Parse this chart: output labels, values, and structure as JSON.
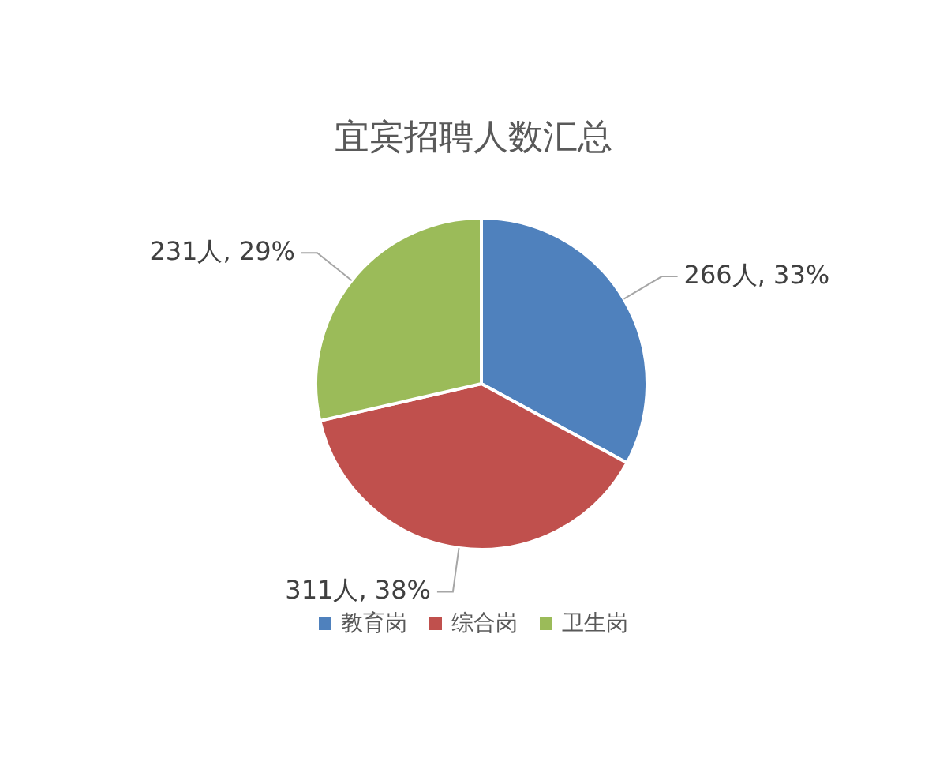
{
  "chart_data": {
    "type": "pie",
    "title": "宜宾招聘人数汇总",
    "categories": [
      "教育岗",
      "综合岗",
      "卫生岗"
    ],
    "values": [
      266,
      311,
      231
    ],
    "colors": [
      "#4f81bd",
      "#c0504d",
      "#9bbb59"
    ],
    "value_labels": [
      "266人, 33%",
      "311人, 38%",
      "231人, 29%"
    ],
    "legend": "bottom"
  }
}
